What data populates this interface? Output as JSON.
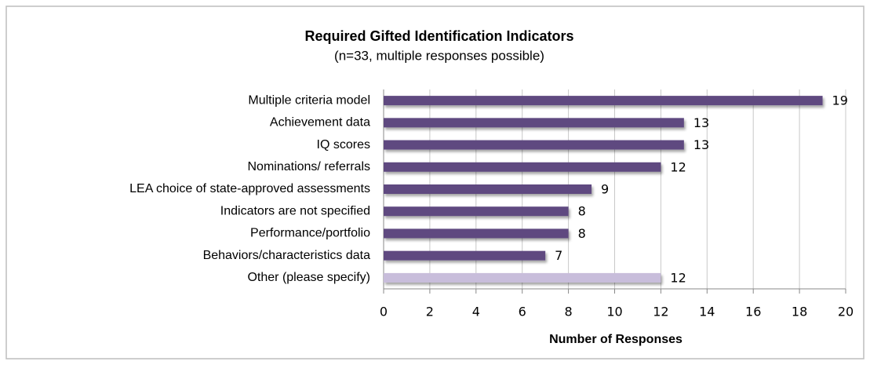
{
  "chart_data": {
    "type": "bar",
    "orientation": "horizontal",
    "title": "Required Gifted Identification Indicators",
    "subtitle": "(n=33, multiple responses possible)",
    "x_label": "Number of Responses",
    "categories": [
      "Multiple criteria model",
      "Achievement data",
      "IQ scores",
      "Nominations/ referrals",
      "LEA choice of state-approved assessments",
      "Indicators are not specified",
      "Performance/portfolio",
      "Behaviors/characteristics data",
      "Other (please specify)"
    ],
    "values": [
      19,
      13,
      13,
      12,
      9,
      8,
      8,
      7,
      12
    ],
    "colors": [
      "#5e4a80",
      "#5e4a80",
      "#5e4a80",
      "#5e4a80",
      "#5e4a80",
      "#5e4a80",
      "#5e4a80",
      "#5e4a80",
      "#c8bddb"
    ],
    "xlim": [
      0,
      20
    ],
    "xticks": [
      0,
      2,
      4,
      6,
      8,
      10,
      12,
      14,
      16,
      18,
      20
    ],
    "grid": true
  }
}
